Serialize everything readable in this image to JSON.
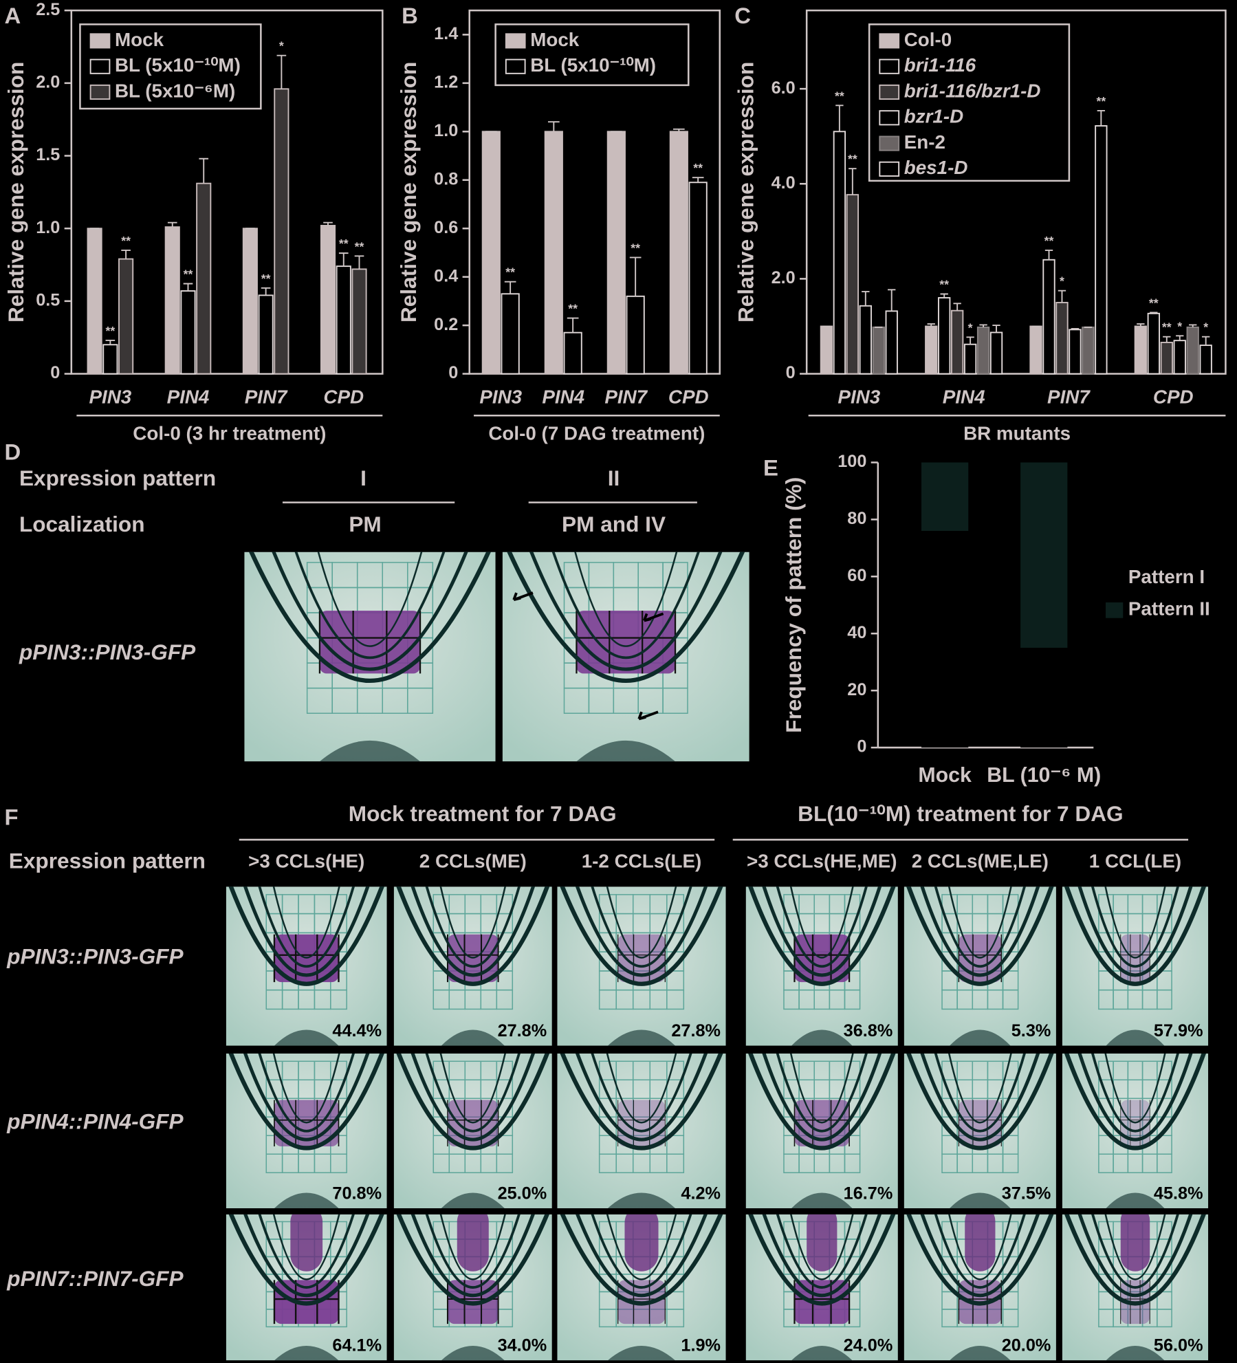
{
  "chart_data": [
    {
      "type": "bar",
      "label": "A",
      "ylabel": "Relative gene expression",
      "xlabel": "Col-0 (3 hr treatment)",
      "categories": [
        "PIN3",
        "PIN4",
        "PIN7",
        "CPD"
      ],
      "legend": "upper left",
      "ylim": [
        0,
        2.5
      ],
      "yticks": [
        0,
        0.5,
        {
          "value": 1,
          "label": "1.0"
        },
        1.5,
        {
          "value": 2,
          "label": "2.0"
        },
        2.5
      ],
      "series": [
        {
          "name": "Mock",
          "color": "#c9bcbc",
          "stroke": "#c9bcbc",
          "values": [
            1.0,
            1.01,
            1.0,
            1.02
          ],
          "errors": [
            0,
            0.03,
            0,
            0.02
          ],
          "stars": [
            null,
            null,
            null,
            null
          ]
        },
        {
          "name": "BL (5x10⁻¹⁰M)",
          "color": "#000000",
          "stroke": "#e2dada",
          "values": [
            0.2,
            0.57,
            0.54,
            0.74
          ],
          "errors": [
            0.03,
            0.05,
            0.05,
            0.09
          ],
          "stars": [
            "**",
            "**",
            "**",
            "**"
          ]
        },
        {
          "name": "BL (5x10⁻⁶M)",
          "color": "#3a3636",
          "stroke": "#c9bcbc",
          "values": [
            0.79,
            1.31,
            1.96,
            0.72
          ],
          "errors": [
            0.06,
            0.17,
            0.23,
            0.09
          ],
          "stars": [
            "**",
            null,
            "*",
            "**"
          ]
        }
      ]
    },
    {
      "type": "bar",
      "label": "B",
      "ylabel": "Relative gene expression",
      "xlabel": "Col-0 (7 DAG treatment)",
      "categories": [
        "PIN3",
        "PIN4",
        "PIN7",
        "CPD"
      ],
      "legend": "upper left",
      "ylim": [
        0,
        1.5
      ],
      "yticks": [
        0,
        0.2,
        0.4,
        0.6,
        0.8,
        {
          "value": 1,
          "label": "1.0"
        },
        1.2,
        1.4
      ],
      "series": [
        {
          "name": "Mock",
          "color": "#c9bcbc",
          "stroke": "#c9bcbc",
          "values": [
            1.0,
            1.0,
            1.0,
            1.0
          ],
          "errors": [
            0,
            0.04,
            0,
            0.01
          ],
          "stars": [
            null,
            null,
            null,
            null
          ]
        },
        {
          "name": "BL (5x10⁻¹⁰M)",
          "color": "#000000",
          "stroke": "#e2dada",
          "values": [
            0.33,
            0.17,
            0.32,
            0.79
          ],
          "errors": [
            0.05,
            0.06,
            0.16,
            0.02
          ],
          "stars": [
            "**",
            "**",
            "**",
            "**"
          ]
        }
      ]
    },
    {
      "type": "bar",
      "label": "C",
      "ylabel": "Relative gene expression",
      "xlabel": "BR mutants",
      "categories": [
        "PIN3",
        "PIN4",
        "PIN7",
        "CPD"
      ],
      "legend": "upper left",
      "ylim": [
        0,
        7.65
      ],
      "yticks": [
        0,
        {
          "value": 2,
          "label": "2.0"
        },
        {
          "value": 4,
          "label": "4.0"
        },
        {
          "value": 6,
          "label": "6.0"
        }
      ],
      "series": [
        {
          "name": "Col-0",
          "italic": false,
          "color": "#c9bcbc",
          "stroke": "#c9bcbc",
          "values": [
            1.0,
            1.0,
            1.0,
            1.0
          ],
          "errors": [
            0,
            0.05,
            0,
            0.05
          ],
          "stars": [
            null,
            null,
            null,
            null
          ]
        },
        {
          "name": "bri1-116",
          "italic": true,
          "color": "#000000",
          "stroke": "#e2dada",
          "values": [
            5.1,
            1.6,
            2.4,
            1.27
          ],
          "errors": [
            0.55,
            0.08,
            0.2,
            0.02
          ],
          "stars": [
            "**",
            "**",
            "**",
            "**"
          ]
        },
        {
          "name": "bri1-116/bzr1-D",
          "italic": true,
          "color": "#3a3636",
          "stroke": "#c9bcbc",
          "values": [
            3.77,
            1.33,
            1.5,
            0.66
          ],
          "errors": [
            0.55,
            0.15,
            0.25,
            0.12
          ],
          "stars": [
            "**",
            null,
            "*",
            "**"
          ]
        },
        {
          "name": "bzr1-D",
          "italic": true,
          "color": "#000000",
          "stroke": "#e2dada",
          "values": [
            1.43,
            0.62,
            0.93,
            0.7
          ],
          "errors": [
            0.3,
            0.15,
            0.02,
            0.1
          ],
          "stars": [
            null,
            "*",
            null,
            "*"
          ]
        },
        {
          "name": "En-2",
          "italic": false,
          "color": "#6a6464",
          "stroke": "#8a8484",
          "values": [
            0.98,
            0.98,
            0.98,
            0.98
          ],
          "errors": [
            0,
            0.05,
            0,
            0.05
          ],
          "stars": [
            null,
            null,
            null,
            null
          ]
        },
        {
          "name": "bes1-D",
          "italic": true,
          "color": "#000000",
          "stroke": "#e2dada",
          "values": [
            1.32,
            0.87,
            5.22,
            0.6
          ],
          "errors": [
            0.45,
            0.15,
            0.32,
            0.18
          ],
          "stars": [
            null,
            null,
            "**",
            "*"
          ]
        }
      ]
    },
    {
      "type": "bar",
      "stacked": true,
      "label": "E",
      "ylabel": "Frequency of pattern (%)",
      "categories": [
        "Mock",
        "BL (10⁻⁶ M)"
      ],
      "legend": "right",
      "ylim": [
        0,
        100
      ],
      "yticks": [
        0,
        20,
        40,
        60,
        80,
        100
      ],
      "series": [
        {
          "name": "Pattern I",
          "color": "#000000",
          "values": [
            76,
            35
          ]
        },
        {
          "name": "Pattern II",
          "color": "#0c1f1c",
          "values": [
            24,
            65
          ]
        }
      ]
    }
  ],
  "panel_d": {
    "label": "D",
    "pattern_header": "Expression pattern",
    "patterns": [
      "I",
      "II"
    ],
    "localization_header": "Localization",
    "localizations": [
      "PM",
      "PM and IV"
    ],
    "row_label": "pPIN3::PIN3-GFP"
  },
  "panel_f": {
    "label": "F",
    "groups": [
      "Mock treatment for 7 DAG",
      "BL(10⁻¹⁰M) treatment for 7 DAG"
    ],
    "row_header": "Expression pattern",
    "columns": [
      ">3 CCLs(HE)",
      "2 CCLs(ME)",
      "1-2 CCLs(LE)",
      ">3 CCLs(HE,ME)",
      "2 CCLs(ME,LE)",
      "1 CCL(LE)"
    ],
    "rows": [
      {
        "label": "pPIN3::PIN3-GFP",
        "percentages": [
          "44.4%",
          "27.8%",
          "27.8%",
          "36.8%",
          "5.3%",
          "57.9%"
        ]
      },
      {
        "label": "pPIN4::PIN4-GFP",
        "percentages": [
          "70.8%",
          "25.0%",
          "4.2%",
          "16.7%",
          "37.5%",
          "45.8%"
        ]
      },
      {
        "label": "pPIN7::PIN7-GFP",
        "percentages": [
          "64.1%",
          "34.0%",
          "1.9%",
          "24.0%",
          "20.0%",
          "56.0%"
        ]
      }
    ]
  }
}
